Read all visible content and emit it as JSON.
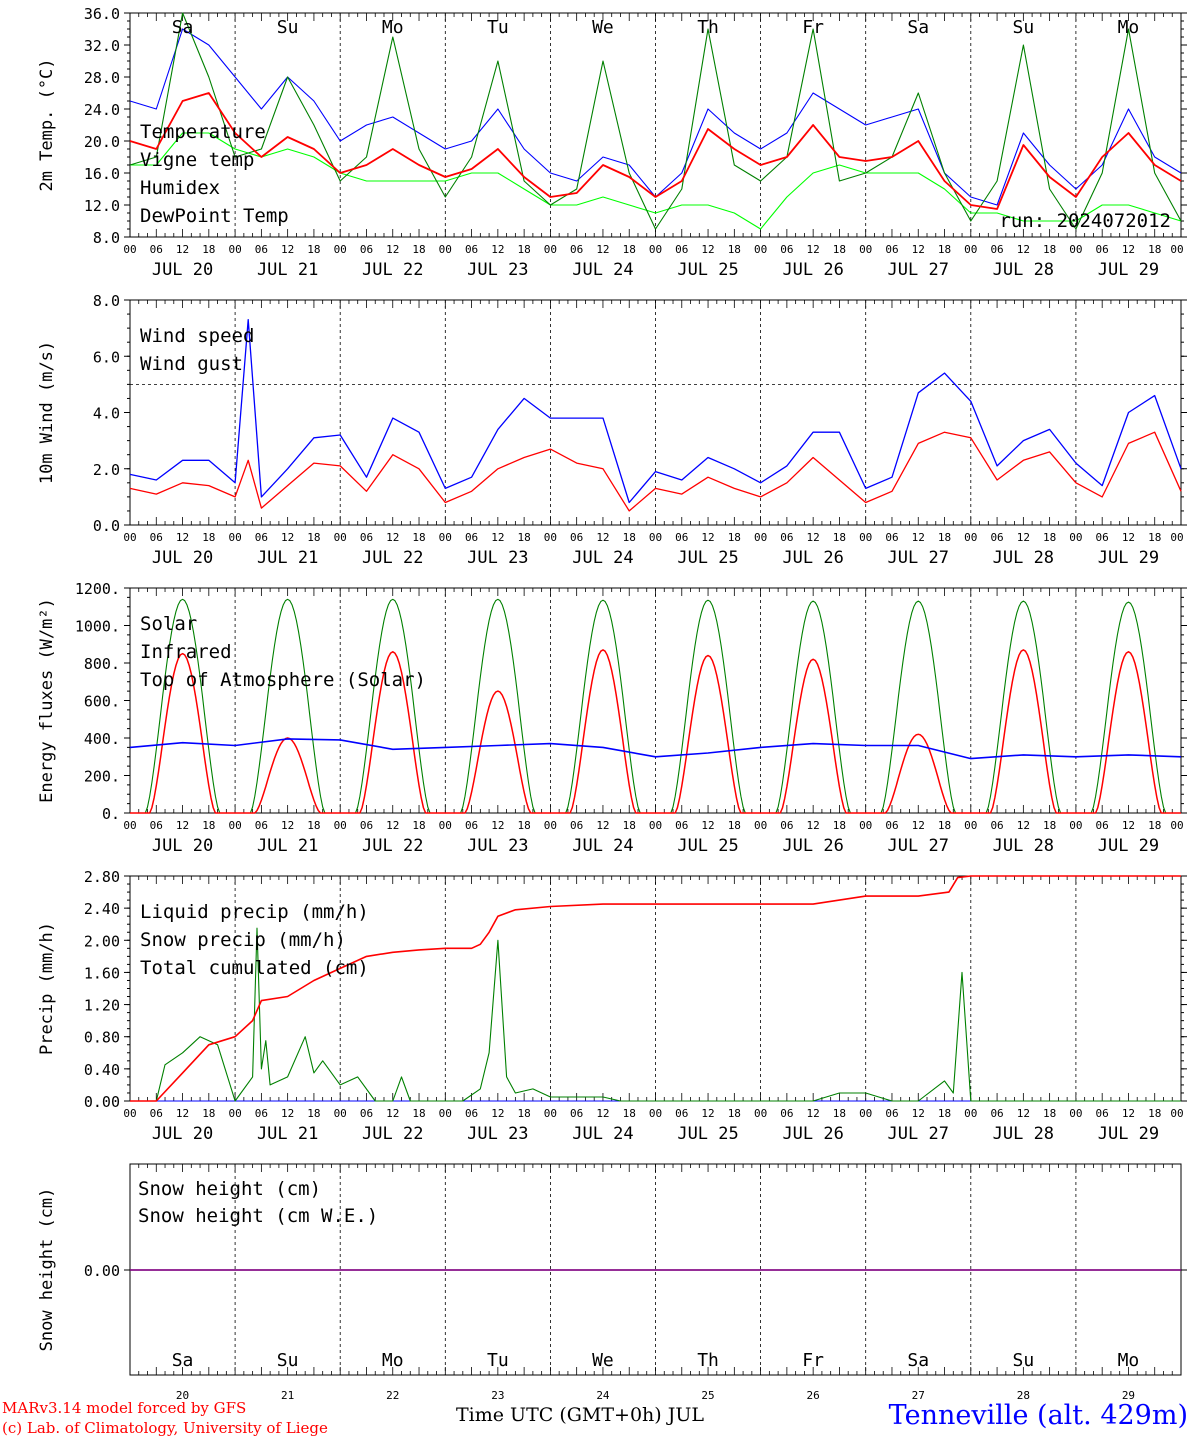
{
  "chart_data": [
    {
      "type": "line",
      "ylabel": "2m Temp. (°C)",
      "ylim": [
        8,
        36
      ],
      "yticks": [
        "8.0",
        "12.0",
        "16.0",
        "20.0",
        "24.0",
        "28.0",
        "32.0",
        "36.0"
      ],
      "annotation": "run: 2024072012",
      "days": [
        {
          "label": "Sa",
          "color": "#ff0000"
        },
        {
          "label": "Su",
          "color": "#ff0000"
        },
        {
          "label": "Mo",
          "color": "#000000"
        },
        {
          "label": "Tu",
          "color": "#000000"
        },
        {
          "label": "We",
          "color": "#000000"
        },
        {
          "label": "Th",
          "color": "#000000"
        },
        {
          "label": "Fr",
          "color": "#000000"
        },
        {
          "label": "Sa",
          "color": "#ff0000"
        },
        {
          "label": "Su",
          "color": "#ff0000"
        },
        {
          "label": "Mo",
          "color": "#000000"
        }
      ],
      "x": [
        0,
        6,
        12,
        18,
        24,
        30,
        36,
        42,
        48,
        54,
        60,
        66,
        72,
        78,
        84,
        90,
        96,
        102,
        108,
        114,
        120,
        126,
        132,
        138,
        144,
        150,
        156,
        162,
        168,
        174,
        180,
        186,
        192,
        198,
        204,
        210,
        216,
        222,
        228,
        234,
        240
      ],
      "series": [
        {
          "name": "Temperature",
          "color": "#ff0000",
          "values": [
            20,
            19,
            25,
            26,
            21,
            18,
            20.5,
            19,
            16,
            17,
            19,
            17,
            15.5,
            16.5,
            19,
            15.5,
            13,
            13.5,
            17,
            15.5,
            13,
            15,
            21.5,
            19,
            17,
            18,
            22,
            18,
            17.5,
            18,
            20,
            15,
            12,
            11.5,
            19.5,
            15.5,
            13,
            18,
            21,
            17,
            15
          ]
        },
        {
          "name": "Vigne temp",
          "color": "#008000",
          "values": [
            17,
            18,
            36,
            28,
            18,
            19,
            28,
            22,
            15,
            18,
            33,
            19,
            13,
            18,
            30,
            15,
            12,
            14,
            30,
            16,
            9,
            14,
            34,
            17,
            15,
            18,
            34,
            15,
            16,
            18,
            26,
            16,
            10,
            15,
            32,
            14,
            9,
            16,
            34,
            16,
            10
          ]
        },
        {
          "name": "Humidex",
          "color": "#0000ff",
          "values": [
            25,
            24,
            34,
            32,
            28,
            24,
            28,
            25,
            20,
            22,
            23,
            21,
            19,
            20,
            24,
            19,
            16,
            15,
            18,
            17,
            13,
            16,
            24,
            21,
            19,
            21,
            26,
            24,
            22,
            23,
            24,
            16,
            13,
            12,
            21,
            17,
            14,
            17,
            24,
            18,
            16
          ]
        },
        {
          "name": "DewPoint Temp",
          "color": "#00ff00",
          "values": [
            17,
            17,
            21,
            21,
            19,
            18,
            19,
            18,
            16,
            15,
            15,
            15,
            15,
            16,
            16,
            14,
            12,
            12,
            13,
            12,
            11,
            12,
            12,
            11,
            9,
            13,
            16,
            17,
            16,
            16,
            16,
            14,
            11,
            11,
            10,
            10,
            10,
            12,
            12,
            11,
            10
          ]
        }
      ]
    },
    {
      "type": "line",
      "ylabel": "10m Wind (m/s)",
      "ylim": [
        0,
        8
      ],
      "yticks": [
        "0.0",
        "2.0",
        "4.0",
        "6.0",
        "8.0"
      ],
      "refline": 5,
      "x": [
        0,
        6,
        12,
        18,
        24,
        27,
        30,
        36,
        42,
        48,
        54,
        60,
        66,
        72,
        78,
        84,
        90,
        96,
        102,
        108,
        114,
        120,
        126,
        132,
        138,
        144,
        150,
        156,
        162,
        168,
        174,
        180,
        186,
        192,
        198,
        204,
        210,
        216,
        222,
        228,
        234,
        240
      ],
      "series": [
        {
          "name": "Wind speed",
          "color": "#ff0000",
          "values": [
            1.3,
            1.1,
            1.5,
            1.4,
            1.0,
            2.3,
            0.6,
            1.4,
            2.2,
            2.1,
            1.2,
            2.5,
            2.0,
            0.8,
            1.2,
            2.0,
            2.4,
            2.7,
            2.2,
            2.0,
            0.5,
            1.3,
            1.1,
            1.7,
            1.3,
            1.0,
            1.5,
            2.4,
            1.6,
            0.8,
            1.2,
            2.9,
            3.3,
            3.1,
            1.6,
            2.3,
            2.6,
            1.5,
            1.0,
            2.9,
            3.3,
            1.2
          ]
        },
        {
          "name": "Wind gust",
          "color": "#0000ff",
          "values": [
            1.8,
            1.6,
            2.3,
            2.3,
            1.5,
            7.3,
            1.0,
            2.0,
            3.1,
            3.2,
            1.7,
            3.8,
            3.3,
            1.3,
            1.7,
            3.4,
            4.5,
            3.8,
            3.8,
            3.8,
            0.8,
            1.9,
            1.6,
            2.4,
            2.0,
            1.5,
            2.1,
            3.3,
            3.3,
            1.3,
            1.7,
            4.7,
            5.4,
            4.4,
            2.1,
            3.0,
            3.4,
            2.2,
            1.4,
            4.0,
            4.6,
            2.0
          ]
        }
      ]
    },
    {
      "type": "line",
      "ylabel": "Energy fluxes (W/m²)",
      "ylim": [
        0,
        1200
      ],
      "yticks": [
        "0.",
        "200.",
        "400.",
        "600.",
        "800.",
        "1000.",
        "1200."
      ],
      "series": [
        {
          "name": "Solar",
          "color": "#ff0000",
          "daily_peak": [
            850,
            400,
            860,
            650,
            870,
            840,
            820,
            420,
            870,
            860
          ]
        },
        {
          "name": "Infrared",
          "color": "#0000ff",
          "x": [
            0,
            12,
            24,
            36,
            48,
            60,
            72,
            84,
            96,
            108,
            120,
            132,
            144,
            156,
            168,
            180,
            192,
            204,
            216,
            228,
            240
          ],
          "values": [
            350,
            375,
            360,
            395,
            390,
            340,
            350,
            360,
            370,
            350,
            300,
            320,
            350,
            370,
            360,
            360,
            290,
            310,
            300,
            310,
            300
          ]
        },
        {
          "name": "Top of Atmosphere (Solar)",
          "color": "#008000",
          "daily_peak": [
            1140,
            1140,
            1140,
            1140,
            1135,
            1135,
            1130,
            1130,
            1130,
            1125
          ]
        }
      ]
    },
    {
      "type": "line",
      "ylabel": "Precip (mm/h)",
      "ylim": [
        0,
        2.8
      ],
      "yticks": [
        "0.00",
        "0.40",
        "0.80",
        "1.20",
        "1.60",
        "2.00",
        "2.40",
        "2.80"
      ],
      "series": [
        {
          "name": "Liquid precip (mm/h)",
          "color": "#008000",
          "x": [
            0,
            6,
            8,
            12,
            16,
            20,
            24,
            28,
            29,
            30,
            31,
            32,
            36,
            40,
            42,
            44,
            48,
            52,
            56,
            60,
            62,
            64,
            72,
            76,
            80,
            82,
            84,
            86,
            88,
            92,
            96,
            100,
            104,
            108,
            112,
            120,
            156,
            162,
            168,
            174,
            180,
            186,
            188,
            190,
            192,
            240
          ],
          "values": [
            0,
            0,
            0.45,
            0.6,
            0.8,
            0.7,
            0,
            0.3,
            2.15,
            0.4,
            0.75,
            0.2,
            0.3,
            0.8,
            0.35,
            0.5,
            0.2,
            0.3,
            0,
            0,
            0.3,
            0,
            0,
            0,
            0.15,
            0.6,
            2.0,
            0.3,
            0.1,
            0.15,
            0.05,
            0.05,
            0.05,
            0.05,
            0,
            0,
            0,
            0.1,
            0.1,
            0,
            0,
            0.25,
            0.1,
            1.6,
            0,
            0
          ]
        },
        {
          "name": "Snow precip (mm/h)",
          "color": "#0000ff",
          "x": [
            0,
            240
          ],
          "values": [
            0,
            0
          ]
        },
        {
          "name": "Total cumulated (cm)",
          "color": "#ff0000",
          "x": [
            0,
            6,
            12,
            18,
            24,
            28,
            30,
            36,
            42,
            48,
            54,
            60,
            66,
            72,
            78,
            80,
            82,
            84,
            88,
            96,
            108,
            120,
            144,
            156,
            168,
            180,
            187,
            189,
            192,
            240
          ],
          "values": [
            0,
            0,
            0.35,
            0.7,
            0.8,
            1.0,
            1.25,
            1.3,
            1.5,
            1.65,
            1.8,
            1.85,
            1.88,
            1.9,
            1.9,
            1.95,
            2.1,
            2.3,
            2.38,
            2.42,
            2.45,
            2.45,
            2.45,
            2.45,
            2.55,
            2.55,
            2.6,
            2.78,
            2.8,
            2.8
          ]
        }
      ]
    },
    {
      "type": "line",
      "ylabel": "Snow height (cm)",
      "yticks": [
        "0.00"
      ],
      "series": [
        {
          "name": "Snow height (cm)",
          "color": "#ff0000",
          "x": [
            0,
            240
          ],
          "values": [
            0,
            0
          ]
        },
        {
          "name": "Snow height (cm W.E.)",
          "color": "#0000ff",
          "x": [
            0,
            240
          ],
          "values": [
            0,
            0
          ]
        }
      ]
    }
  ],
  "hour_labels": [
    "00",
    "06",
    "12",
    "18"
  ],
  "date_labels": [
    "JUL 20",
    "JUL 21",
    "JUL 22",
    "JUL 23",
    "JUL 24",
    "JUL 25",
    "JUL 26",
    "JUL 27",
    "JUL 28",
    "JUL 29"
  ],
  "date_numbers": [
    "20",
    "21",
    "22",
    "23",
    "24",
    "25",
    "26",
    "27",
    "28",
    "29"
  ],
  "xlabel": "Time UTC (GMT+0h) JUL",
  "footer": {
    "credit1": "MARv3.14 model forced by GFS",
    "credit2": "(c) Lab. of Climatology, University of Liege",
    "station": "Tenneville (alt. 429m)"
  }
}
